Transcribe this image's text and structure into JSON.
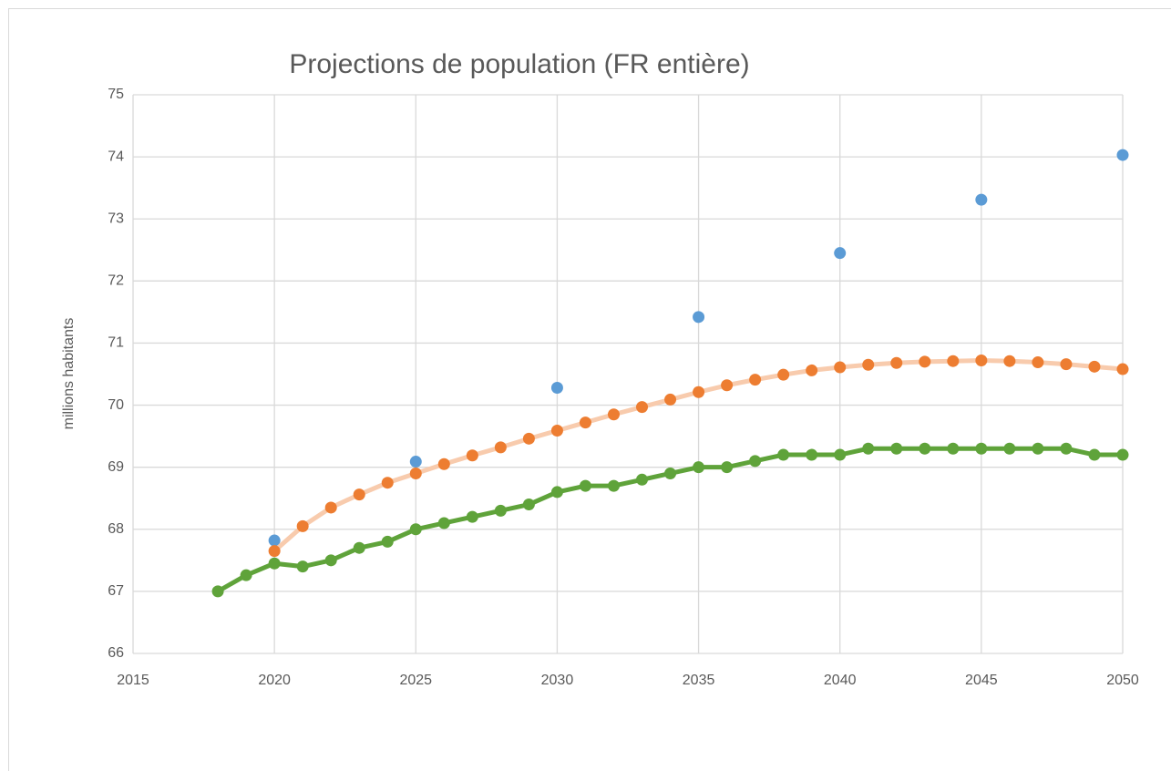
{
  "chart_data": {
    "type": "scatter",
    "title": "Projections de population (FR entière)",
    "y_label": "millions habitants",
    "xlim": [
      2015,
      2050
    ],
    "xticks": [
      2015,
      2020,
      2025,
      2030,
      2035,
      2040,
      2045,
      2050
    ],
    "ylim": [
      66,
      75
    ],
    "yticks": [
      66,
      67,
      68,
      69,
      70,
      71,
      72,
      73,
      74,
      75
    ],
    "grid": true,
    "series": [
      {
        "color": "#5b9bd5",
        "line": false,
        "x": [
          2020,
          2025,
          2030,
          2035,
          2040,
          2045,
          2050
        ],
        "values": [
          67.82,
          69.09,
          70.28,
          71.42,
          72.45,
          73.31,
          74.03
        ]
      },
      {
        "color": "#ed7d31",
        "line": true,
        "line_color": "#f8cbad",
        "x": [
          2020,
          2021,
          2022,
          2023,
          2024,
          2025,
          2026,
          2027,
          2028,
          2029,
          2030,
          2031,
          2032,
          2033,
          2034,
          2035,
          2036,
          2037,
          2038,
          2039,
          2040,
          2041,
          2042,
          2043,
          2044,
          2045,
          2046,
          2047,
          2048,
          2049,
          2050
        ],
        "values": [
          67.65,
          68.05,
          68.35,
          68.56,
          68.75,
          68.9,
          69.05,
          69.19,
          69.32,
          69.46,
          69.59,
          69.72,
          69.85,
          69.97,
          70.09,
          70.21,
          70.32,
          70.41,
          70.49,
          70.56,
          70.61,
          70.65,
          70.68,
          70.7,
          70.71,
          70.72,
          70.71,
          70.69,
          70.66,
          70.62,
          70.58
        ]
      },
      {
        "color": "#5fa33a",
        "line": true,
        "line_color": "#5fa33a",
        "x": [
          2018,
          2019,
          2020,
          2021,
          2022,
          2023,
          2024,
          2025,
          2026,
          2027,
          2028,
          2029,
          2030,
          2031,
          2032,
          2033,
          2034,
          2035,
          2036,
          2037,
          2038,
          2039,
          2040,
          2041,
          2042,
          2043,
          2044,
          2045,
          2046,
          2047,
          2048,
          2049,
          2050
        ],
        "values": [
          67.0,
          67.26,
          67.45,
          67.4,
          67.5,
          67.7,
          67.8,
          68.0,
          68.1,
          68.2,
          68.3,
          68.4,
          68.6,
          68.7,
          68.7,
          68.8,
          68.9,
          69.0,
          69.0,
          69.1,
          69.2,
          69.2,
          69.2,
          69.3,
          69.3,
          69.3,
          69.3,
          69.3,
          69.3,
          69.3,
          69.3,
          69.2,
          69.2
        ]
      }
    ]
  }
}
